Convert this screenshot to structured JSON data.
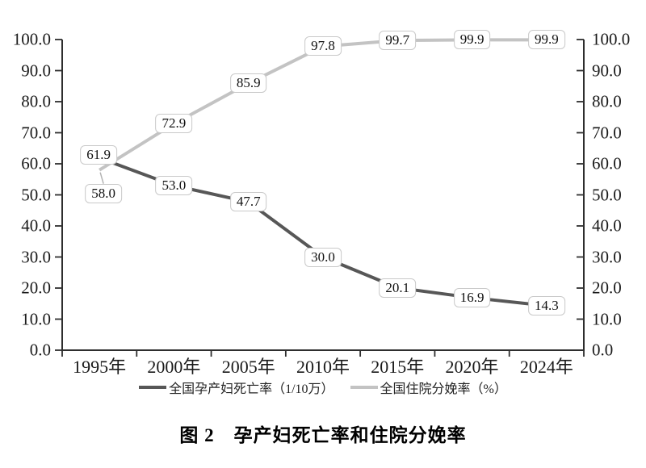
{
  "chart_data": {
    "type": "line",
    "title": "图 2　孕产妇死亡率和住院分娩率",
    "categories": [
      "1995年",
      "2000年",
      "2005年",
      "2010年",
      "2015年",
      "2020年",
      "2024年"
    ],
    "series": [
      {
        "name": "全国孕产妇死亡率（1/10万）",
        "values": [
          61.9,
          53.0,
          47.7,
          30.0,
          20.1,
          16.9,
          14.3
        ],
        "color": "#575757"
      },
      {
        "name": "全国住院分娩率（%）",
        "values": [
          58.0,
          72.9,
          85.9,
          97.8,
          99.7,
          99.9,
          99.9
        ],
        "color": "#c3c3c3"
      }
    ],
    "y_axis": {
      "min": 0,
      "max": 100,
      "step": 10,
      "tick_labels": [
        "0.0",
        "10.0",
        "20.0",
        "30.0",
        "40.0",
        "50.0",
        "60.0",
        "70.0",
        "80.0",
        "90.0",
        "100.0"
      ],
      "dual": true
    },
    "grid": false,
    "legend_position": "bottom",
    "data_labels": true,
    "axis_color": "#2e2e2e",
    "label_box_border_color": "#c9c9c9"
  }
}
